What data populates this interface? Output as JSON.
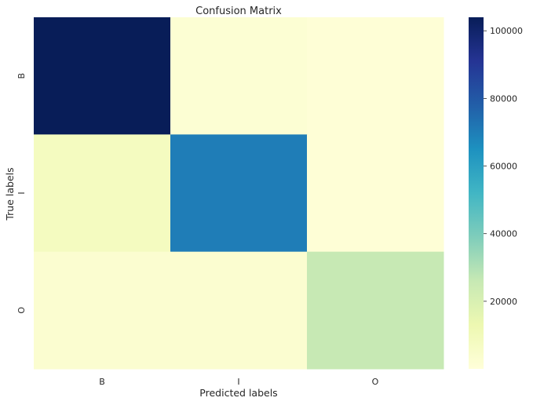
{
  "chart_data": {
    "type": "heatmap",
    "title": "Confusion Matrix",
    "xlabel": "Predicted labels",
    "ylabel": "True labels",
    "x_categories": [
      "B",
      "I",
      "O"
    ],
    "y_categories": [
      "B",
      "I",
      "O"
    ],
    "values": [
      [
        104000,
        2000,
        1000
      ],
      [
        8000,
        70000,
        1000
      ],
      [
        3000,
        3000,
        26000
      ]
    ],
    "colormap": "YlGnBu",
    "colorbar": {
      "min": 0,
      "max": 104000,
      "ticks": [
        20000,
        40000,
        60000,
        80000,
        100000
      ],
      "tick_labels": [
        "20000",
        "40000",
        "60000",
        "80000",
        "100000"
      ]
    },
    "grid": false,
    "legend": "colorbar-right"
  }
}
